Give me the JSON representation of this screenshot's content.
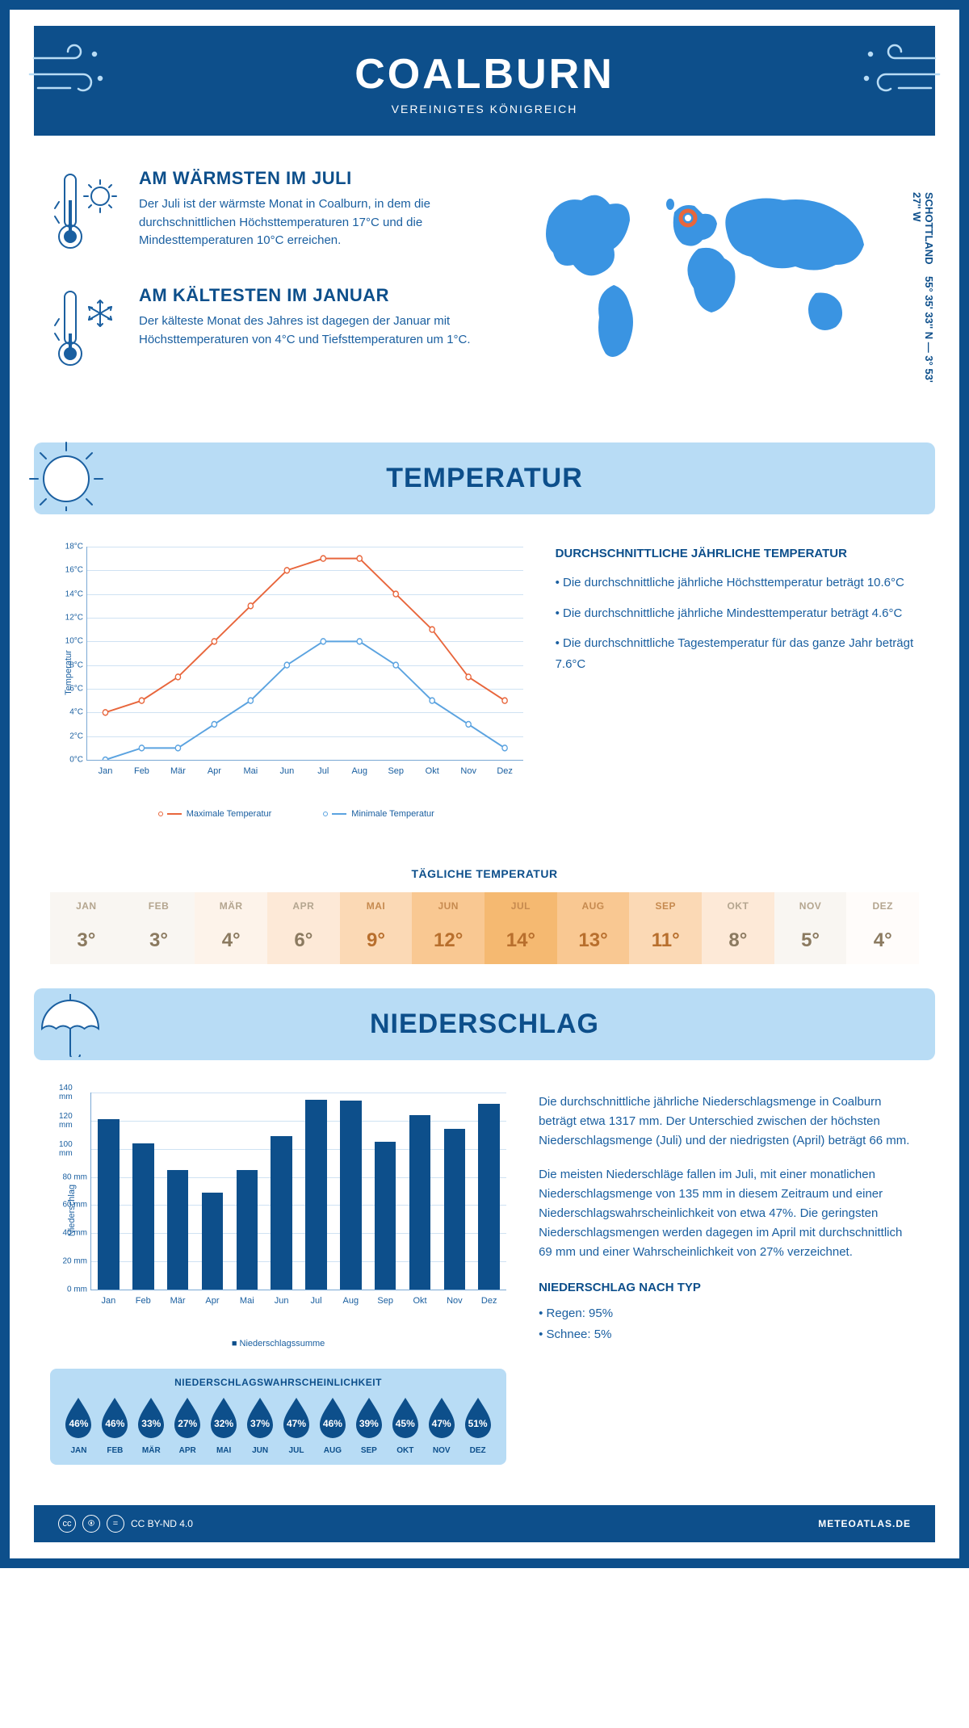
{
  "header": {
    "title": "COALBURN",
    "subtitle": "VEREINIGTES KÖNIGREICH"
  },
  "coords": "55° 35' 33'' N — 3° 53' 27'' W",
  "region": "SCHOTTLAND",
  "facts": {
    "warm": {
      "title": "AM WÄRMSTEN IM JULI",
      "text": "Der Juli ist der wärmste Monat in Coalburn, in dem die durchschnittlichen Höchsttemperaturen 17°C und die Mindesttemperaturen 10°C erreichen."
    },
    "cold": {
      "title": "AM KÄLTESTEN IM JANUAR",
      "text": "Der kälteste Monat des Jahres ist dagegen der Januar mit Höchsttemperaturen von 4°C und Tiefsttemperaturen um 1°C."
    }
  },
  "sections": {
    "temp": "TEMPERATUR",
    "precip": "NIEDERSCHLAG"
  },
  "temp_chart": {
    "type": "line",
    "ylabel": "Temperatur",
    "ymin": 0,
    "ymax": 18,
    "ystep": 2,
    "ytick_suffix": "°C",
    "months": [
      "Jan",
      "Feb",
      "Mär",
      "Apr",
      "Mai",
      "Jun",
      "Jul",
      "Aug",
      "Sep",
      "Okt",
      "Nov",
      "Dez"
    ],
    "max_series": {
      "color": "#e8663c",
      "label": "Maximale Temperatur",
      "values": [
        4,
        5,
        7,
        10,
        13,
        16,
        17,
        17,
        14,
        11,
        7,
        5
      ]
    },
    "min_series": {
      "color": "#5ba3e0",
      "label": "Minimale Temperatur",
      "values": [
        0,
        1,
        1,
        3,
        5,
        8,
        10,
        10,
        8,
        5,
        3,
        1
      ]
    },
    "grid_color": "#cfe2f3",
    "axis_color": "#7aa8d4",
    "marker_fill": "#ffffff",
    "marker_size": 3.5,
    "line_width": 2
  },
  "temp_info": {
    "title": "DURCHSCHNITTLICHE JÄHRLICHE TEMPERATUR",
    "b1": "• Die durchschnittliche jährliche Höchsttemperatur beträgt 10.6°C",
    "b2": "• Die durchschnittliche jährliche Mindesttemperatur beträgt 4.6°C",
    "b3": "• Die durchschnittliche Tagestemperatur für das ganze Jahr beträgt 7.6°C"
  },
  "daily": {
    "title": "TÄGLICHE TEMPERATUR",
    "months": [
      "JAN",
      "FEB",
      "MÄR",
      "APR",
      "MAI",
      "JUN",
      "JUL",
      "AUG",
      "SEP",
      "OKT",
      "NOV",
      "DEZ"
    ],
    "values": [
      "3°",
      "3°",
      "4°",
      "6°",
      "9°",
      "12°",
      "14°",
      "13°",
      "11°",
      "8°",
      "5°",
      "4°"
    ],
    "bg_colors": [
      "#f9f6f2",
      "#f9f6f2",
      "#fdf3ea",
      "#fde9d7",
      "#fbd9b5",
      "#f9c892",
      "#f5b971",
      "#f9c892",
      "#fbd9b5",
      "#fde9d7",
      "#f9f6f2",
      "#fffcfa"
    ],
    "month_txt": "#b4a58f",
    "month_txt_hot": "#c68a4f",
    "val_txt": "#8b7a60",
    "val_txt_hot": "#b86f2d"
  },
  "precip_chart": {
    "type": "bar",
    "ylabel": "Niederschlag",
    "ymin": 0,
    "ymax": 140,
    "ystep": 20,
    "ytick_suffix": " mm",
    "months": [
      "Jan",
      "Feb",
      "Mär",
      "Apr",
      "Mai",
      "Jun",
      "Jul",
      "Aug",
      "Sep",
      "Okt",
      "Nov",
      "Dez"
    ],
    "values": [
      121,
      104,
      85,
      69,
      85,
      109,
      135,
      134,
      105,
      124,
      114,
      132
    ],
    "bar_color": "#0d4f8b",
    "grid_color": "#cfe2f3",
    "legend": "Niederschlagssumme"
  },
  "precip_text": {
    "p1": "Die durchschnittliche jährliche Niederschlagsmenge in Coalburn beträgt etwa 1317 mm. Der Unterschied zwischen der höchsten Niederschlagsmenge (Juli) und der niedrigsten (April) beträgt 66 mm.",
    "p2": "Die meisten Niederschläge fallen im Juli, mit einer monatlichen Niederschlagsmenge von 135 mm in diesem Zeitraum und einer Niederschlagswahrscheinlichkeit von etwa 47%. Die geringsten Niederschlagsmengen werden dagegen im April mit durchschnittlich 69 mm und einer Wahrscheinlichkeit von 27% verzeichnet.",
    "type_title": "NIEDERSCHLAG NACH TYP",
    "type1": "• Regen: 95%",
    "type2": "• Schnee: 5%"
  },
  "probability": {
    "title": "NIEDERSCHLAGSWAHRSCHEINLICHKEIT",
    "months": [
      "JAN",
      "FEB",
      "MÄR",
      "APR",
      "MAI",
      "JUN",
      "JUL",
      "AUG",
      "SEP",
      "OKT",
      "NOV",
      "DEZ"
    ],
    "values": [
      "46%",
      "46%",
      "33%",
      "27%",
      "32%",
      "37%",
      "47%",
      "46%",
      "39%",
      "45%",
      "47%",
      "51%"
    ],
    "drop_color": "#0d4f8b"
  },
  "footer": {
    "license": "CC BY-ND 4.0",
    "site": "METEOATLAS.DE"
  },
  "colors": {
    "primary": "#0d4f8b",
    "light": "#b8dcf5",
    "map": "#3a94e2",
    "marker": "#e8663c"
  }
}
